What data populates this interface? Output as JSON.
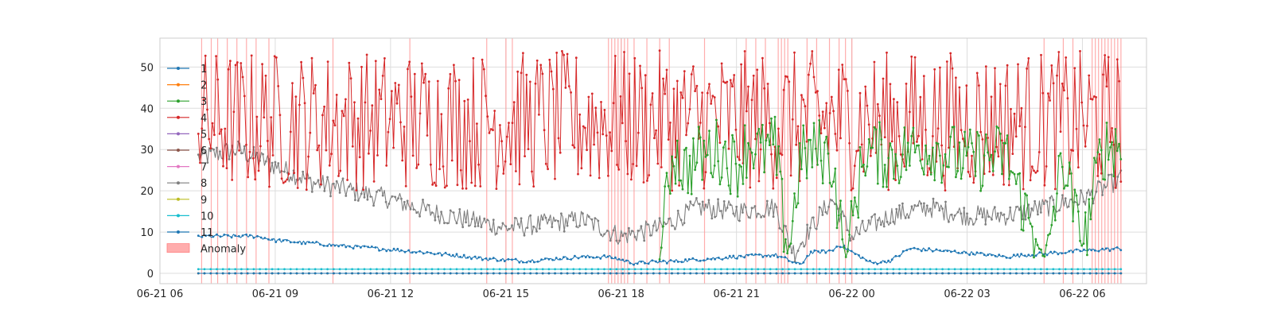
{
  "chart_data": {
    "type": "line",
    "title": "",
    "xlabel": "",
    "ylabel": "",
    "x_range": [
      "2021-06-21 06:00",
      "2021-06-22 07:40"
    ],
    "ylim": [
      -2.5,
      57
    ],
    "grid": true,
    "legend_position": "upper-left",
    "x_ticks": [
      {
        "value": "2021-06-21 06:00",
        "label": "06-21 06"
      },
      {
        "value": "2021-06-21 09:00",
        "label": "06-21 09"
      },
      {
        "value": "2021-06-21 12:00",
        "label": "06-21 12"
      },
      {
        "value": "2021-06-21 15:00",
        "label": "06-21 15"
      },
      {
        "value": "2021-06-21 18:00",
        "label": "06-21 18"
      },
      {
        "value": "2021-06-21 21:00",
        "label": "06-21 21"
      },
      {
        "value": "2021-06-22 00:00",
        "label": "06-22 00"
      },
      {
        "value": "2021-06-22 03:00",
        "label": "06-22 03"
      },
      {
        "value": "2021-06-22 06:00",
        "label": "06-22 06"
      }
    ],
    "y_ticks": [
      0,
      10,
      20,
      30,
      40,
      50
    ],
    "series": [
      {
        "name": "1",
        "color": "#1f77b4",
        "x": [
          "2021-06-21 07:00",
          "2021-06-21 08:30",
          "2021-06-21 09:00",
          "2021-06-21 11:00",
          "2021-06-21 13:00",
          "2021-06-21 14:30",
          "2021-06-21 15:30",
          "2021-06-21 17:00",
          "2021-06-21 17:40",
          "2021-06-21 18:20",
          "2021-06-21 19:30",
          "2021-06-21 21:00",
          "2021-06-21 22:00",
          "2021-06-21 22:40",
          "2021-06-21 22:55",
          "2021-06-21 23:30",
          "2021-06-21 23:40",
          "2021-06-22 00:30",
          "2021-06-22 01:00",
          "2021-06-22 01:30",
          "2021-06-22 03:00",
          "2021-06-22 04:00",
          "2021-06-22 06:00",
          "2021-06-22 07:00"
        ],
        "y": [
          9,
          9,
          8,
          6.5,
          5,
          3.5,
          3,
          4,
          4,
          2.5,
          3,
          4,
          4.5,
          2,
          5,
          5.5,
          7,
          2.5,
          3,
          6,
          5,
          4,
          5.5,
          6
        ]
      },
      {
        "name": "2",
        "color": "#ff7f0e",
        "x": [
          "2021-06-21 07:00",
          "2021-06-22 07:00"
        ],
        "y": [
          0,
          0
        ]
      },
      {
        "name": "3",
        "color": "#2ca02c",
        "x": [
          "2021-06-21 19:00",
          "2021-06-21 19:20",
          "2021-06-21 19:40",
          "2021-06-21 20:00",
          "2021-06-21 20:30",
          "2021-06-21 21:00",
          "2021-06-21 21:20",
          "2021-06-21 21:40",
          "2021-06-21 22:00",
          "2021-06-21 22:20",
          "2021-06-21 22:40",
          "2021-06-21 23:10",
          "2021-06-21 23:30",
          "2021-06-21 23:50",
          "2021-06-22 00:20",
          "2021-06-22 01:00",
          "2021-06-22 02:00",
          "2021-06-22 03:00",
          "2021-06-22 04:00",
          "2021-06-22 05:00",
          "2021-06-22 05:30",
          "2021-06-22 06:00",
          "2021-06-22 06:30",
          "2021-06-22 07:00"
        ],
        "y": [
          2,
          30,
          25,
          28,
          30,
          26,
          32,
          29,
          31,
          3,
          28,
          30,
          27,
          2,
          30,
          28,
          31,
          27,
          29,
          2,
          28,
          5,
          30,
          32
        ]
      },
      {
        "name": "4",
        "color": "#d62728",
        "x": [
          "2021-06-21 07:00",
          "2021-06-21 08:00",
          "2021-06-21 09:00",
          "2021-06-21 10:00",
          "2021-06-21 11:00",
          "2021-06-21 12:00",
          "2021-06-21 13:00",
          "2021-06-21 14:00",
          "2021-06-21 15:00",
          "2021-06-21 16:00",
          "2021-06-21 17:00",
          "2021-06-21 18:00",
          "2021-06-21 19:00",
          "2021-06-21 20:00",
          "2021-06-21 21:00",
          "2021-06-21 22:00",
          "2021-06-21 23:00",
          "2021-06-22 00:00",
          "2021-06-22 01:00",
          "2021-06-22 02:00",
          "2021-06-22 03:00",
          "2021-06-22 04:00",
          "2021-06-22 05:00",
          "2021-06-22 06:00",
          "2021-06-22 07:00"
        ],
        "y": [
          35,
          37,
          36,
          35,
          37,
          36,
          34,
          37,
          35,
          36,
          37,
          35,
          36,
          37,
          35,
          36,
          37,
          35,
          36,
          37,
          35,
          36,
          37,
          35,
          36
        ],
        "band": [
          20,
          54
        ]
      },
      {
        "name": "5",
        "color": "#9467bd",
        "x": [
          "2021-06-21 07:00",
          "2021-06-22 07:00"
        ],
        "y": [
          0,
          0
        ]
      },
      {
        "name": "6",
        "color": "#8c564b",
        "x": [
          "2021-06-21 07:00",
          "2021-06-22 07:00"
        ],
        "y": [
          0,
          0
        ]
      },
      {
        "name": "7",
        "color": "#e377c2",
        "x": [
          "2021-06-21 07:00",
          "2021-06-22 07:00"
        ],
        "y": [
          0,
          0
        ]
      },
      {
        "name": "8",
        "color": "#7f7f7f",
        "x": [
          "2021-06-21 07:00",
          "2021-06-21 08:00",
          "2021-06-21 09:00",
          "2021-06-21 10:00",
          "2021-06-21 11:00",
          "2021-06-21 12:00",
          "2021-06-21 13:00",
          "2021-06-21 14:00",
          "2021-06-21 15:00",
          "2021-06-21 16:00",
          "2021-06-21 17:00",
          "2021-06-21 18:00",
          "2021-06-21 19:00",
          "2021-06-21 20:00",
          "2021-06-21 21:00",
          "2021-06-21 22:00",
          "2021-06-21 22:30",
          "2021-06-21 23:00",
          "2021-06-21 23:30",
          "2021-06-22 00:00",
          "2021-06-22 01:00",
          "2021-06-22 02:00",
          "2021-06-22 03:00",
          "2021-06-22 04:00",
          "2021-06-22 05:00",
          "2021-06-22 06:00",
          "2021-06-22 07:00"
        ],
        "y": [
          28,
          30,
          26,
          22,
          20,
          18,
          15,
          13,
          11,
          12,
          13,
          9,
          11,
          16,
          15,
          16,
          5,
          12,
          18,
          9,
          14,
          16,
          14,
          14,
          16,
          18,
          23
        ]
      },
      {
        "name": "9",
        "color": "#bcbd22",
        "x": [
          "2021-06-21 07:00",
          "2021-06-22 07:00"
        ],
        "y": [
          0,
          0
        ]
      },
      {
        "name": "10",
        "color": "#17becf",
        "x": [
          "2021-06-21 07:00",
          "2021-06-22 07:00"
        ],
        "y": [
          1,
          1
        ]
      },
      {
        "name": "11",
        "color": "#1f77b4",
        "x": [
          "2021-06-21 07:00",
          "2021-06-22 07:00"
        ],
        "y": [
          0,
          0
        ]
      }
    ],
    "anomaly": {
      "name": "Anomaly",
      "color": "#ff9999",
      "x": [
        "2021-06-21 07:05",
        "2021-06-21 07:20",
        "2021-06-21 07:30",
        "2021-06-21 07:45",
        "2021-06-21 08:00",
        "2021-06-21 08:15",
        "2021-06-21 08:30",
        "2021-06-21 08:50",
        "2021-06-21 10:30",
        "2021-06-21 12:30",
        "2021-06-21 14:30",
        "2021-06-21 15:00",
        "2021-06-21 15:10",
        "2021-06-21 17:40",
        "2021-06-21 17:45",
        "2021-06-21 17:50",
        "2021-06-21 17:55",
        "2021-06-21 18:00",
        "2021-06-21 18:05",
        "2021-06-21 18:10",
        "2021-06-21 18:20",
        "2021-06-21 18:40",
        "2021-06-21 19:00",
        "2021-06-21 19:15",
        "2021-06-21 20:10",
        "2021-06-21 21:15",
        "2021-06-21 21:30",
        "2021-06-21 21:45",
        "2021-06-21 22:05",
        "2021-06-21 22:10",
        "2021-06-21 22:15",
        "2021-06-21 22:20",
        "2021-06-21 22:50",
        "2021-06-21 23:05",
        "2021-06-21 23:25",
        "2021-06-21 23:40",
        "2021-06-21 23:50",
        "2021-06-22 00:00",
        "2021-06-22 05:00",
        "2021-06-22 05:30",
        "2021-06-22 05:45",
        "2021-06-22 06:15",
        "2021-06-22 06:20",
        "2021-06-22 06:25",
        "2021-06-22 06:30",
        "2021-06-22 06:35",
        "2021-06-22 06:40",
        "2021-06-22 06:45",
        "2021-06-22 06:50",
        "2021-06-22 06:55",
        "2021-06-22 07:00"
      ]
    }
  }
}
